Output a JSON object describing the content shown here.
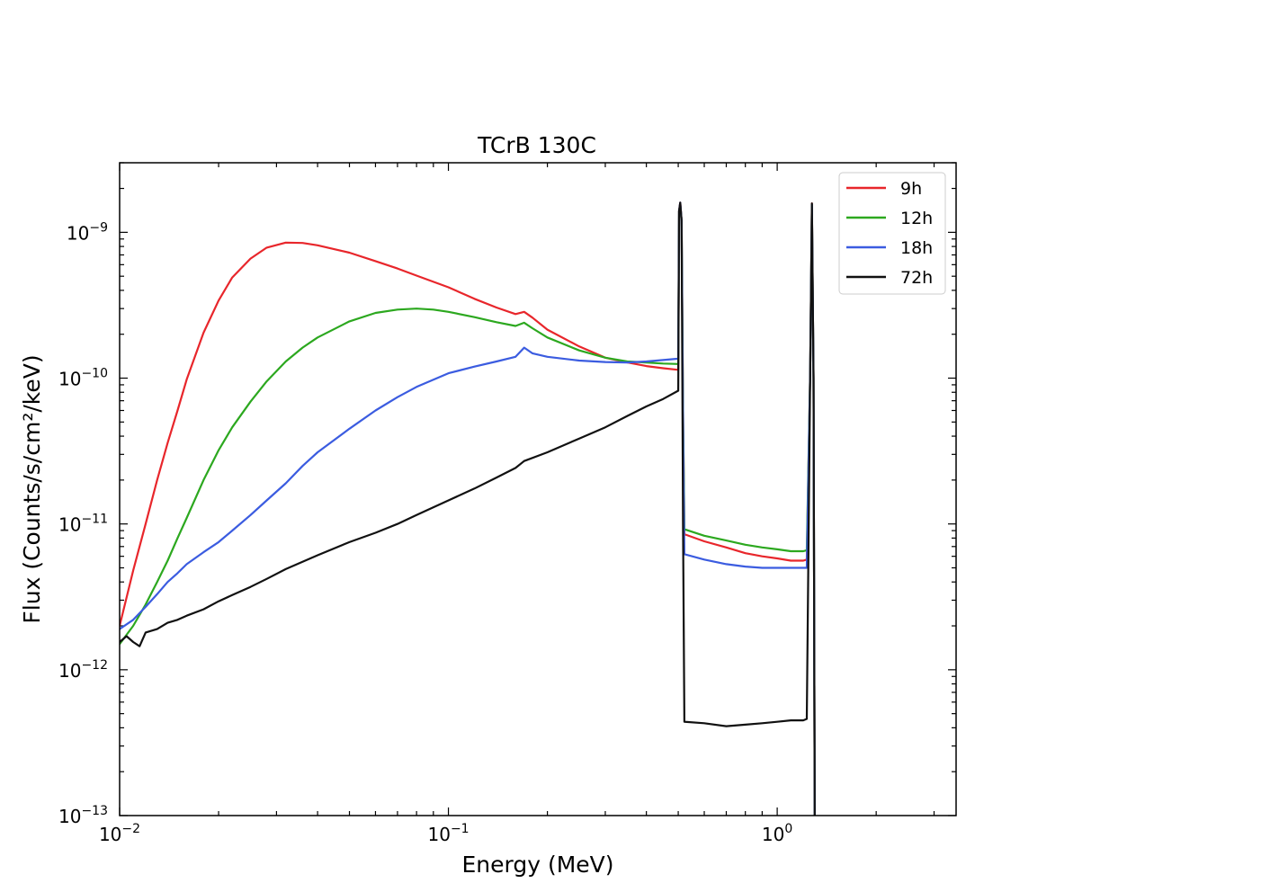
{
  "chart_data": {
    "type": "line",
    "title": "TCrB 130C",
    "xlabel": "Energy (MeV)",
    "ylabel": "Flux (Counts/s/cm²/keV)",
    "xscale": "log",
    "yscale": "log",
    "xlim": [
      0.01,
      3.5
    ],
    "ylim": [
      1e-13,
      3e-09
    ],
    "xticks": [
      {
        "base": "10",
        "exp": "−2"
      },
      {
        "base": "10",
        "exp": "−1"
      },
      {
        "base": "10",
        "exp": "0"
      }
    ],
    "yticks": [
      {
        "base": "10",
        "exp": "−13"
      },
      {
        "base": "10",
        "exp": "−12"
      },
      {
        "base": "10",
        "exp": "−11"
      },
      {
        "base": "10",
        "exp": "−10"
      },
      {
        "base": "10",
        "exp": "−9"
      }
    ],
    "legend_position": "top-right",
    "series": [
      {
        "name": "9h",
        "color": "#e8262b",
        "points": [
          [
            0.01,
            2e-12
          ],
          [
            0.011,
            4.8e-12
          ],
          [
            0.012,
            1e-11
          ],
          [
            0.013,
            2e-11
          ],
          [
            0.014,
            3.6e-11
          ],
          [
            0.015,
            6e-11
          ],
          [
            0.016,
            9.8e-11
          ],
          [
            0.018,
            2.05e-10
          ],
          [
            0.02,
            3.4e-10
          ],
          [
            0.022,
            4.9e-10
          ],
          [
            0.025,
            6.6e-10
          ],
          [
            0.028,
            7.85e-10
          ],
          [
            0.032,
            8.5e-10
          ],
          [
            0.036,
            8.45e-10
          ],
          [
            0.04,
            8.15e-10
          ],
          [
            0.05,
            7.25e-10
          ],
          [
            0.06,
            6.35e-10
          ],
          [
            0.07,
            5.65e-10
          ],
          [
            0.08,
            5.05e-10
          ],
          [
            0.1,
            4.2e-10
          ],
          [
            0.12,
            3.5e-10
          ],
          [
            0.14,
            3.05e-10
          ],
          [
            0.16,
            2.75e-10
          ],
          [
            0.17,
            2.85e-10
          ],
          [
            0.18,
            2.6e-10
          ],
          [
            0.2,
            2.15e-10
          ],
          [
            0.25,
            1.65e-10
          ],
          [
            0.3,
            1.38e-10
          ],
          [
            0.35,
            1.28e-10
          ],
          [
            0.4,
            1.21e-10
          ],
          [
            0.45,
            1.17e-10
          ],
          [
            0.5,
            1.14e-10
          ],
          [
            0.503,
            1.4e-09
          ],
          [
            0.507,
            1.6e-09
          ],
          [
            0.512,
            1.2e-09
          ],
          [
            0.517,
            6e-11
          ],
          [
            0.522,
            8.5e-12
          ],
          [
            0.6,
            7.6e-12
          ],
          [
            0.7,
            6.9e-12
          ],
          [
            0.8,
            6.3e-12
          ],
          [
            0.9,
            6e-12
          ],
          [
            1.0,
            5.8e-12
          ],
          [
            1.1,
            5.6e-12
          ],
          [
            1.2,
            5.6e-12
          ],
          [
            1.23,
            5.7e-12
          ],
          [
            1.26,
            1.1e-10
          ],
          [
            1.275,
            1.58e-09
          ],
          [
            1.29,
            1e-10
          ],
          [
            1.3,
            1e-13
          ]
        ]
      },
      {
        "name": "12h",
        "color": "#2ca81f",
        "points": [
          [
            0.01,
            1.5e-12
          ],
          [
            0.011,
            2e-12
          ],
          [
            0.012,
            2.8e-12
          ],
          [
            0.013,
            4e-12
          ],
          [
            0.014,
            5.6e-12
          ],
          [
            0.015,
            8e-12
          ],
          [
            0.016,
            1.1e-11
          ],
          [
            0.018,
            2e-11
          ],
          [
            0.02,
            3.2e-11
          ],
          [
            0.022,
            4.6e-11
          ],
          [
            0.025,
            6.9e-11
          ],
          [
            0.028,
            9.5e-11
          ],
          [
            0.032,
            1.3e-10
          ],
          [
            0.036,
            1.62e-10
          ],
          [
            0.04,
            1.9e-10
          ],
          [
            0.05,
            2.45e-10
          ],
          [
            0.06,
            2.8e-10
          ],
          [
            0.07,
            2.95e-10
          ],
          [
            0.08,
            3e-10
          ],
          [
            0.09,
            2.95e-10
          ],
          [
            0.1,
            2.85e-10
          ],
          [
            0.12,
            2.62e-10
          ],
          [
            0.14,
            2.42e-10
          ],
          [
            0.16,
            2.28e-10
          ],
          [
            0.17,
            2.4e-10
          ],
          [
            0.18,
            2.2e-10
          ],
          [
            0.2,
            1.9e-10
          ],
          [
            0.25,
            1.55e-10
          ],
          [
            0.3,
            1.38e-10
          ],
          [
            0.35,
            1.3e-10
          ],
          [
            0.4,
            1.28e-10
          ],
          [
            0.45,
            1.26e-10
          ],
          [
            0.5,
            1.25e-10
          ],
          [
            0.503,
            1.4e-09
          ],
          [
            0.507,
            1.55e-09
          ],
          [
            0.512,
            1.2e-09
          ],
          [
            0.517,
            6e-11
          ],
          [
            0.522,
            9.2e-12
          ],
          [
            0.6,
            8.3e-12
          ],
          [
            0.7,
            7.7e-12
          ],
          [
            0.8,
            7.2e-12
          ],
          [
            0.9,
            6.9e-12
          ],
          [
            1.0,
            6.7e-12
          ],
          [
            1.1,
            6.5e-12
          ],
          [
            1.2,
            6.5e-12
          ],
          [
            1.23,
            6.6e-12
          ],
          [
            1.26,
            1.1e-10
          ],
          [
            1.275,
            1.55e-09
          ],
          [
            1.29,
            1e-10
          ],
          [
            1.3,
            1e-13
          ]
        ]
      },
      {
        "name": "18h",
        "color": "#3b5ce0",
        "points": [
          [
            0.01,
            1.9e-12
          ],
          [
            0.011,
            2.2e-12
          ],
          [
            0.012,
            2.7e-12
          ],
          [
            0.013,
            3.3e-12
          ],
          [
            0.014,
            4e-12
          ],
          [
            0.015,
            4.6e-12
          ],
          [
            0.016,
            5.3e-12
          ],
          [
            0.018,
            6.4e-12
          ],
          [
            0.02,
            7.5e-12
          ],
          [
            0.022,
            9e-12
          ],
          [
            0.025,
            1.15e-11
          ],
          [
            0.028,
            1.45e-11
          ],
          [
            0.032,
            1.9e-11
          ],
          [
            0.036,
            2.5e-11
          ],
          [
            0.04,
            3.1e-11
          ],
          [
            0.05,
            4.5e-11
          ],
          [
            0.06,
            6e-11
          ],
          [
            0.07,
            7.4e-11
          ],
          [
            0.08,
            8.7e-11
          ],
          [
            0.1,
            1.08e-10
          ],
          [
            0.12,
            1.2e-10
          ],
          [
            0.14,
            1.3e-10
          ],
          [
            0.16,
            1.4e-10
          ],
          [
            0.17,
            1.62e-10
          ],
          [
            0.18,
            1.48e-10
          ],
          [
            0.2,
            1.4e-10
          ],
          [
            0.25,
            1.32e-10
          ],
          [
            0.3,
            1.29e-10
          ],
          [
            0.35,
            1.28e-10
          ],
          [
            0.4,
            1.3e-10
          ],
          [
            0.45,
            1.33e-10
          ],
          [
            0.5,
            1.36e-10
          ],
          [
            0.503,
            1.4e-09
          ],
          [
            0.507,
            1.6e-09
          ],
          [
            0.512,
            1.2e-09
          ],
          [
            0.517,
            5e-11
          ],
          [
            0.522,
            6.2e-12
          ],
          [
            0.6,
            5.7e-12
          ],
          [
            0.7,
            5.3e-12
          ],
          [
            0.8,
            5.1e-12
          ],
          [
            0.9,
            5e-12
          ],
          [
            1.0,
            5e-12
          ],
          [
            1.1,
            5e-12
          ],
          [
            1.2,
            5e-12
          ],
          [
            1.23,
            5e-12
          ],
          [
            1.26,
            1.1e-10
          ],
          [
            1.275,
            1.55e-09
          ],
          [
            1.29,
            1e-10
          ],
          [
            1.3,
            1e-13
          ]
        ]
      },
      {
        "name": "72h",
        "color": "#111111",
        "points": [
          [
            0.01,
            1.55e-12
          ],
          [
            0.0105,
            1.7e-12
          ],
          [
            0.011,
            1.55e-12
          ],
          [
            0.0115,
            1.45e-12
          ],
          [
            0.012,
            1.8e-12
          ],
          [
            0.013,
            1.9e-12
          ],
          [
            0.014,
            2.1e-12
          ],
          [
            0.015,
            2.2e-12
          ],
          [
            0.016,
            2.35e-12
          ],
          [
            0.018,
            2.6e-12
          ],
          [
            0.02,
            2.95e-12
          ],
          [
            0.022,
            3.25e-12
          ],
          [
            0.025,
            3.7e-12
          ],
          [
            0.028,
            4.2e-12
          ],
          [
            0.032,
            4.9e-12
          ],
          [
            0.036,
            5.5e-12
          ],
          [
            0.04,
            6.1e-12
          ],
          [
            0.05,
            7.5e-12
          ],
          [
            0.06,
            8.7e-12
          ],
          [
            0.07,
            1e-11
          ],
          [
            0.08,
            1.15e-11
          ],
          [
            0.1,
            1.45e-11
          ],
          [
            0.12,
            1.75e-11
          ],
          [
            0.14,
            2.08e-11
          ],
          [
            0.16,
            2.42e-11
          ],
          [
            0.17,
            2.7e-11
          ],
          [
            0.2,
            3.1e-11
          ],
          [
            0.25,
            3.85e-11
          ],
          [
            0.3,
            4.6e-11
          ],
          [
            0.35,
            5.5e-11
          ],
          [
            0.4,
            6.4e-11
          ],
          [
            0.45,
            7.2e-11
          ],
          [
            0.5,
            8.2e-11
          ],
          [
            0.503,
            1.4e-09
          ],
          [
            0.507,
            1.6e-09
          ],
          [
            0.512,
            1.2e-09
          ],
          [
            0.517,
            1e-11
          ],
          [
            0.522,
            4.4e-13
          ],
          [
            0.6,
            4.3e-13
          ],
          [
            0.7,
            4.1e-13
          ],
          [
            0.8,
            4.2e-13
          ],
          [
            0.9,
            4.3e-13
          ],
          [
            1.0,
            4.4e-13
          ],
          [
            1.1,
            4.5e-13
          ],
          [
            1.2,
            4.5e-13
          ],
          [
            1.23,
            4.6e-13
          ],
          [
            1.26,
            1.1e-10
          ],
          [
            1.275,
            1.58e-09
          ],
          [
            1.29,
            1e-10
          ],
          [
            1.3,
            1e-13
          ]
        ]
      }
    ]
  }
}
